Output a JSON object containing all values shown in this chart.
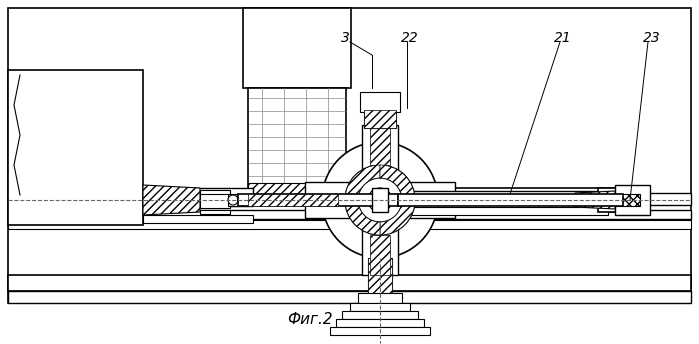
{
  "title": "Фиг.2",
  "bg_color": "#ffffff",
  "line_color": "#000000",
  "label_3": "3",
  "label_22": "22",
  "label_21": "21",
  "label_23": "23"
}
